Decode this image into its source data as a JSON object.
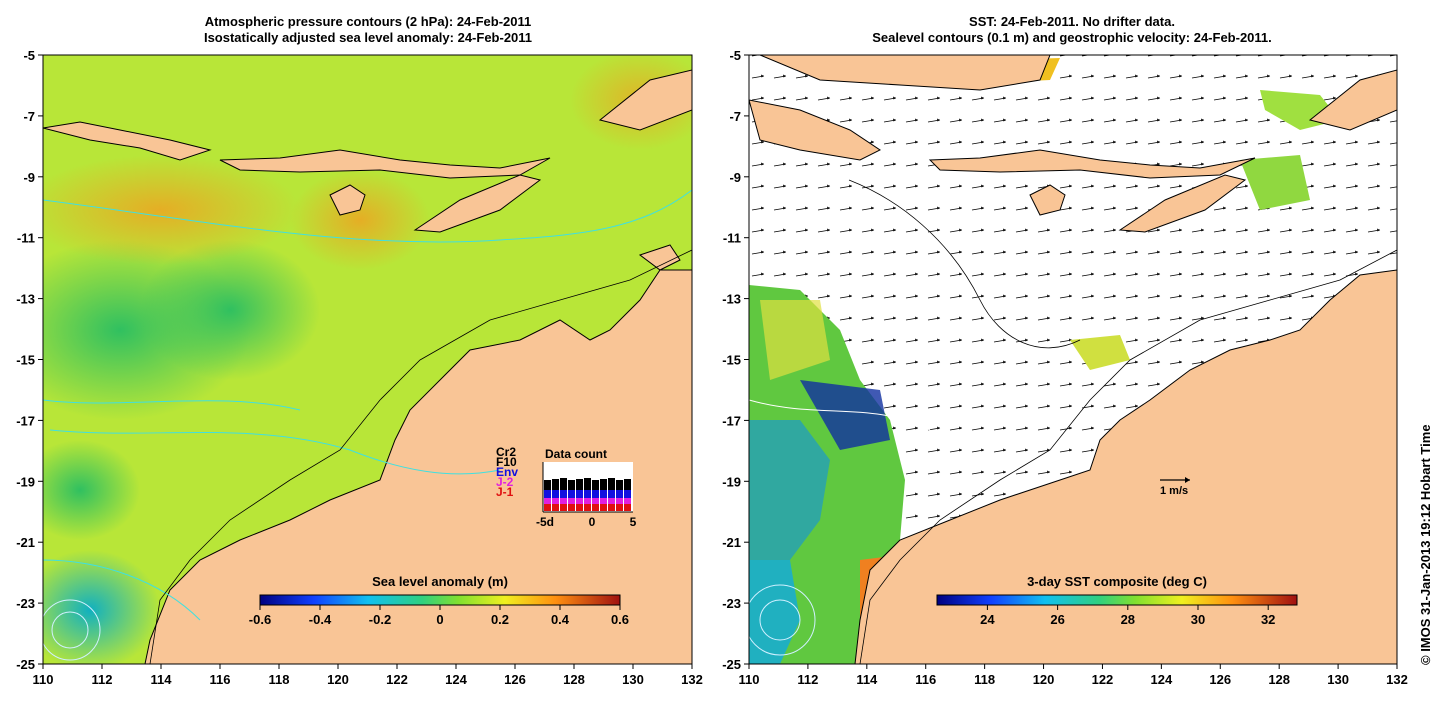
{
  "left_panel": {
    "title_line1": "Atmospheric pressure contours (2 hPa): 24-Feb-2011",
    "title_line2": "Isostatically adjusted sea level anomaly: 24-Feb-2011",
    "colorbar": {
      "title": "Sea level anomaly (m)",
      "ticks": [
        "-0.6",
        "-0.4",
        "-0.2",
        "0",
        "0.2",
        "0.4",
        "0.6"
      ]
    },
    "inset": {
      "title": "Data count",
      "legend": [
        {
          "label": "Cr2",
          "color": "#000000"
        },
        {
          "label": "F10",
          "color": "#000000"
        },
        {
          "label": "Env",
          "color": "#1010e0"
        },
        {
          "label": "J-2",
          "color": "#e020e0"
        },
        {
          "label": "J-1",
          "color": "#e01010"
        }
      ],
      "xticks": [
        "-5d",
        "0",
        "5"
      ]
    }
  },
  "right_panel": {
    "title_line1": "SST: 24-Feb-2011. No drifter data.",
    "title_line2": "Sealevel contours (0.1 m) and geostrophic velocity: 24-Feb-2011.",
    "colorbar": {
      "title": "3-day SST composite (deg C)",
      "ticks": [
        "24",
        "26",
        "28",
        "30",
        "32"
      ]
    },
    "scale_label": "1 m/s"
  },
  "axes": {
    "x_ticks": [
      "110",
      "112",
      "114",
      "116",
      "118",
      "120",
      "122",
      "124",
      "126",
      "128",
      "130",
      "132"
    ],
    "y_ticks": [
      "-5",
      "-7",
      "-9",
      "-11",
      "-13",
      "-15",
      "-17",
      "-19",
      "-21",
      "-23",
      "-25"
    ],
    "x_range": [
      110,
      132
    ],
    "y_range": [
      -25,
      -5
    ]
  },
  "copyright": "© IMOS 31-Jan-2013 19:12 Hobart Time",
  "colors": {
    "land": "#f9c596",
    "ocean_green": "#a8e03c",
    "contour": "#40e0e0"
  }
}
